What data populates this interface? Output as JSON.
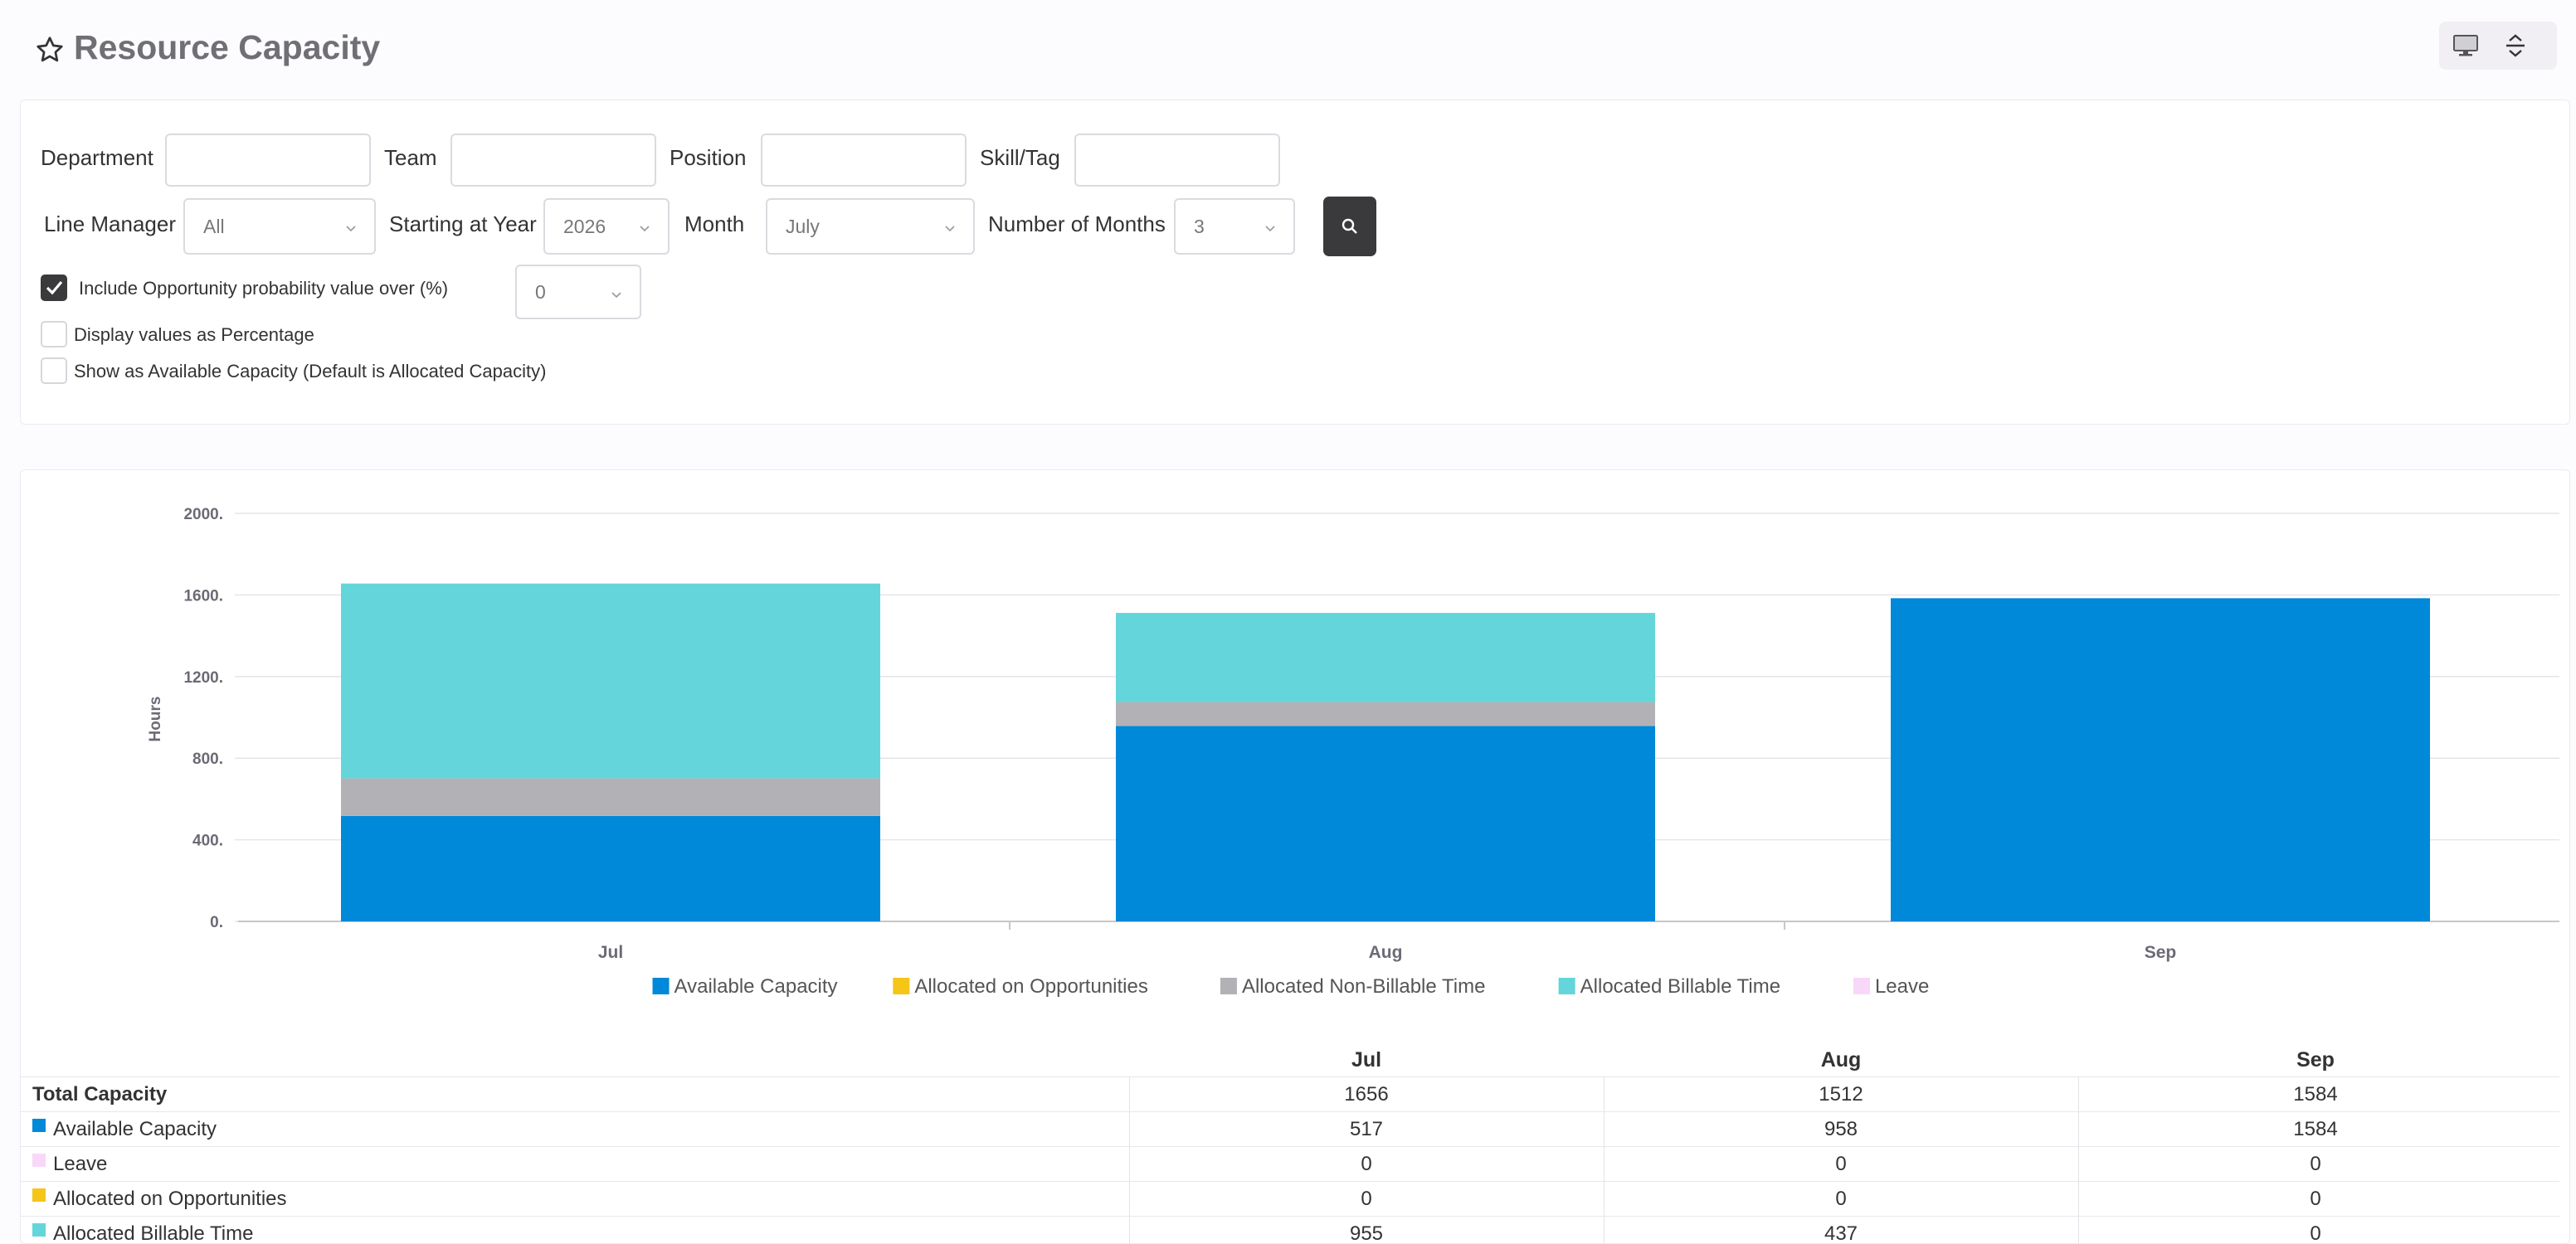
{
  "page": {
    "title": "Resource Capacity",
    "icons": {
      "favorite": "star-outline-icon",
      "display": "monitor-icon",
      "expand": "expand-collapse-icon",
      "search": "search-icon",
      "dropdown": "chevron-down-icon"
    }
  },
  "filters": {
    "department_label": "Department",
    "department_value": "",
    "team_label": "Team",
    "team_value": "",
    "position_label": "Position",
    "position_value": "",
    "skill_label": "Skill/Tag",
    "skill_value": "",
    "line_manager_label": "Line Manager",
    "line_manager_value": "All",
    "start_year_label": "Starting at Year",
    "start_year_value": "2026",
    "month_label": "Month",
    "month_value": "July",
    "num_months_label": "Number of Months",
    "num_months_value": "3",
    "include_opportunity_label": "Include Opportunity probability value over (%)",
    "include_opportunity_checked": true,
    "opportunity_threshold_value": "0",
    "percent_label": "Display values as Percentage",
    "percent_checked": false,
    "available_label": "Show as Available Capacity (Default is Allocated Capacity)",
    "available_checked": false
  },
  "colors": {
    "available": "#0088d9",
    "opportunities": "#f5c518",
    "non_billable": "#b2b2b6",
    "billable": "#64d5da",
    "leave": "#f8d8f8",
    "accent_dark": "#3a3a3c"
  },
  "chart_data": {
    "type": "bar",
    "stacked": true,
    "categories": [
      "Jul",
      "Aug",
      "Sep"
    ],
    "ylabel": "Hours",
    "ylim": [
      0,
      2000
    ],
    "yticks": [
      "0.",
      "400.",
      "800.",
      "1200.",
      "1600.",
      "2000."
    ],
    "ytick_values": [
      0,
      400,
      800,
      1200,
      1600,
      2000
    ],
    "grid": true,
    "legend_position": "bottom",
    "series": [
      {
        "name": "Available Capacity",
        "color": "#0088d9",
        "values": [
          517,
          958,
          1584
        ]
      },
      {
        "name": "Allocated on Opportunities",
        "color": "#f5c518",
        "values": [
          0,
          0,
          0
        ]
      },
      {
        "name": "Allocated Non-Billable Time",
        "color": "#b2b2b6",
        "values": [
          184,
          117,
          0
        ]
      },
      {
        "name": "Allocated Billable Time",
        "color": "#64d5da",
        "values": [
          955,
          437,
          0
        ]
      },
      {
        "name": "Leave",
        "color": "#f8d8f8",
        "values": [
          0,
          0,
          0
        ]
      }
    ]
  },
  "table": {
    "columns": [
      "Jul",
      "Aug",
      "Sep"
    ],
    "rows": [
      {
        "label": "Total Capacity",
        "bold": true,
        "swatch": "",
        "values": [
          "1656",
          "1512",
          "1584"
        ]
      },
      {
        "label": "Available Capacity",
        "bold": false,
        "swatch": "#0088d9",
        "values": [
          "517",
          "958",
          "1584"
        ]
      },
      {
        "label": "Leave",
        "bold": false,
        "swatch": "#f8d8f8",
        "values": [
          "0",
          "0",
          "0"
        ]
      },
      {
        "label": "Allocated on Opportunities",
        "bold": false,
        "swatch": "#f5c518",
        "values": [
          "0",
          "0",
          "0"
        ]
      },
      {
        "label": "Allocated Billable Time",
        "bold": false,
        "swatch": "#64d5da",
        "values": [
          "955",
          "437",
          "0"
        ]
      }
    ]
  }
}
